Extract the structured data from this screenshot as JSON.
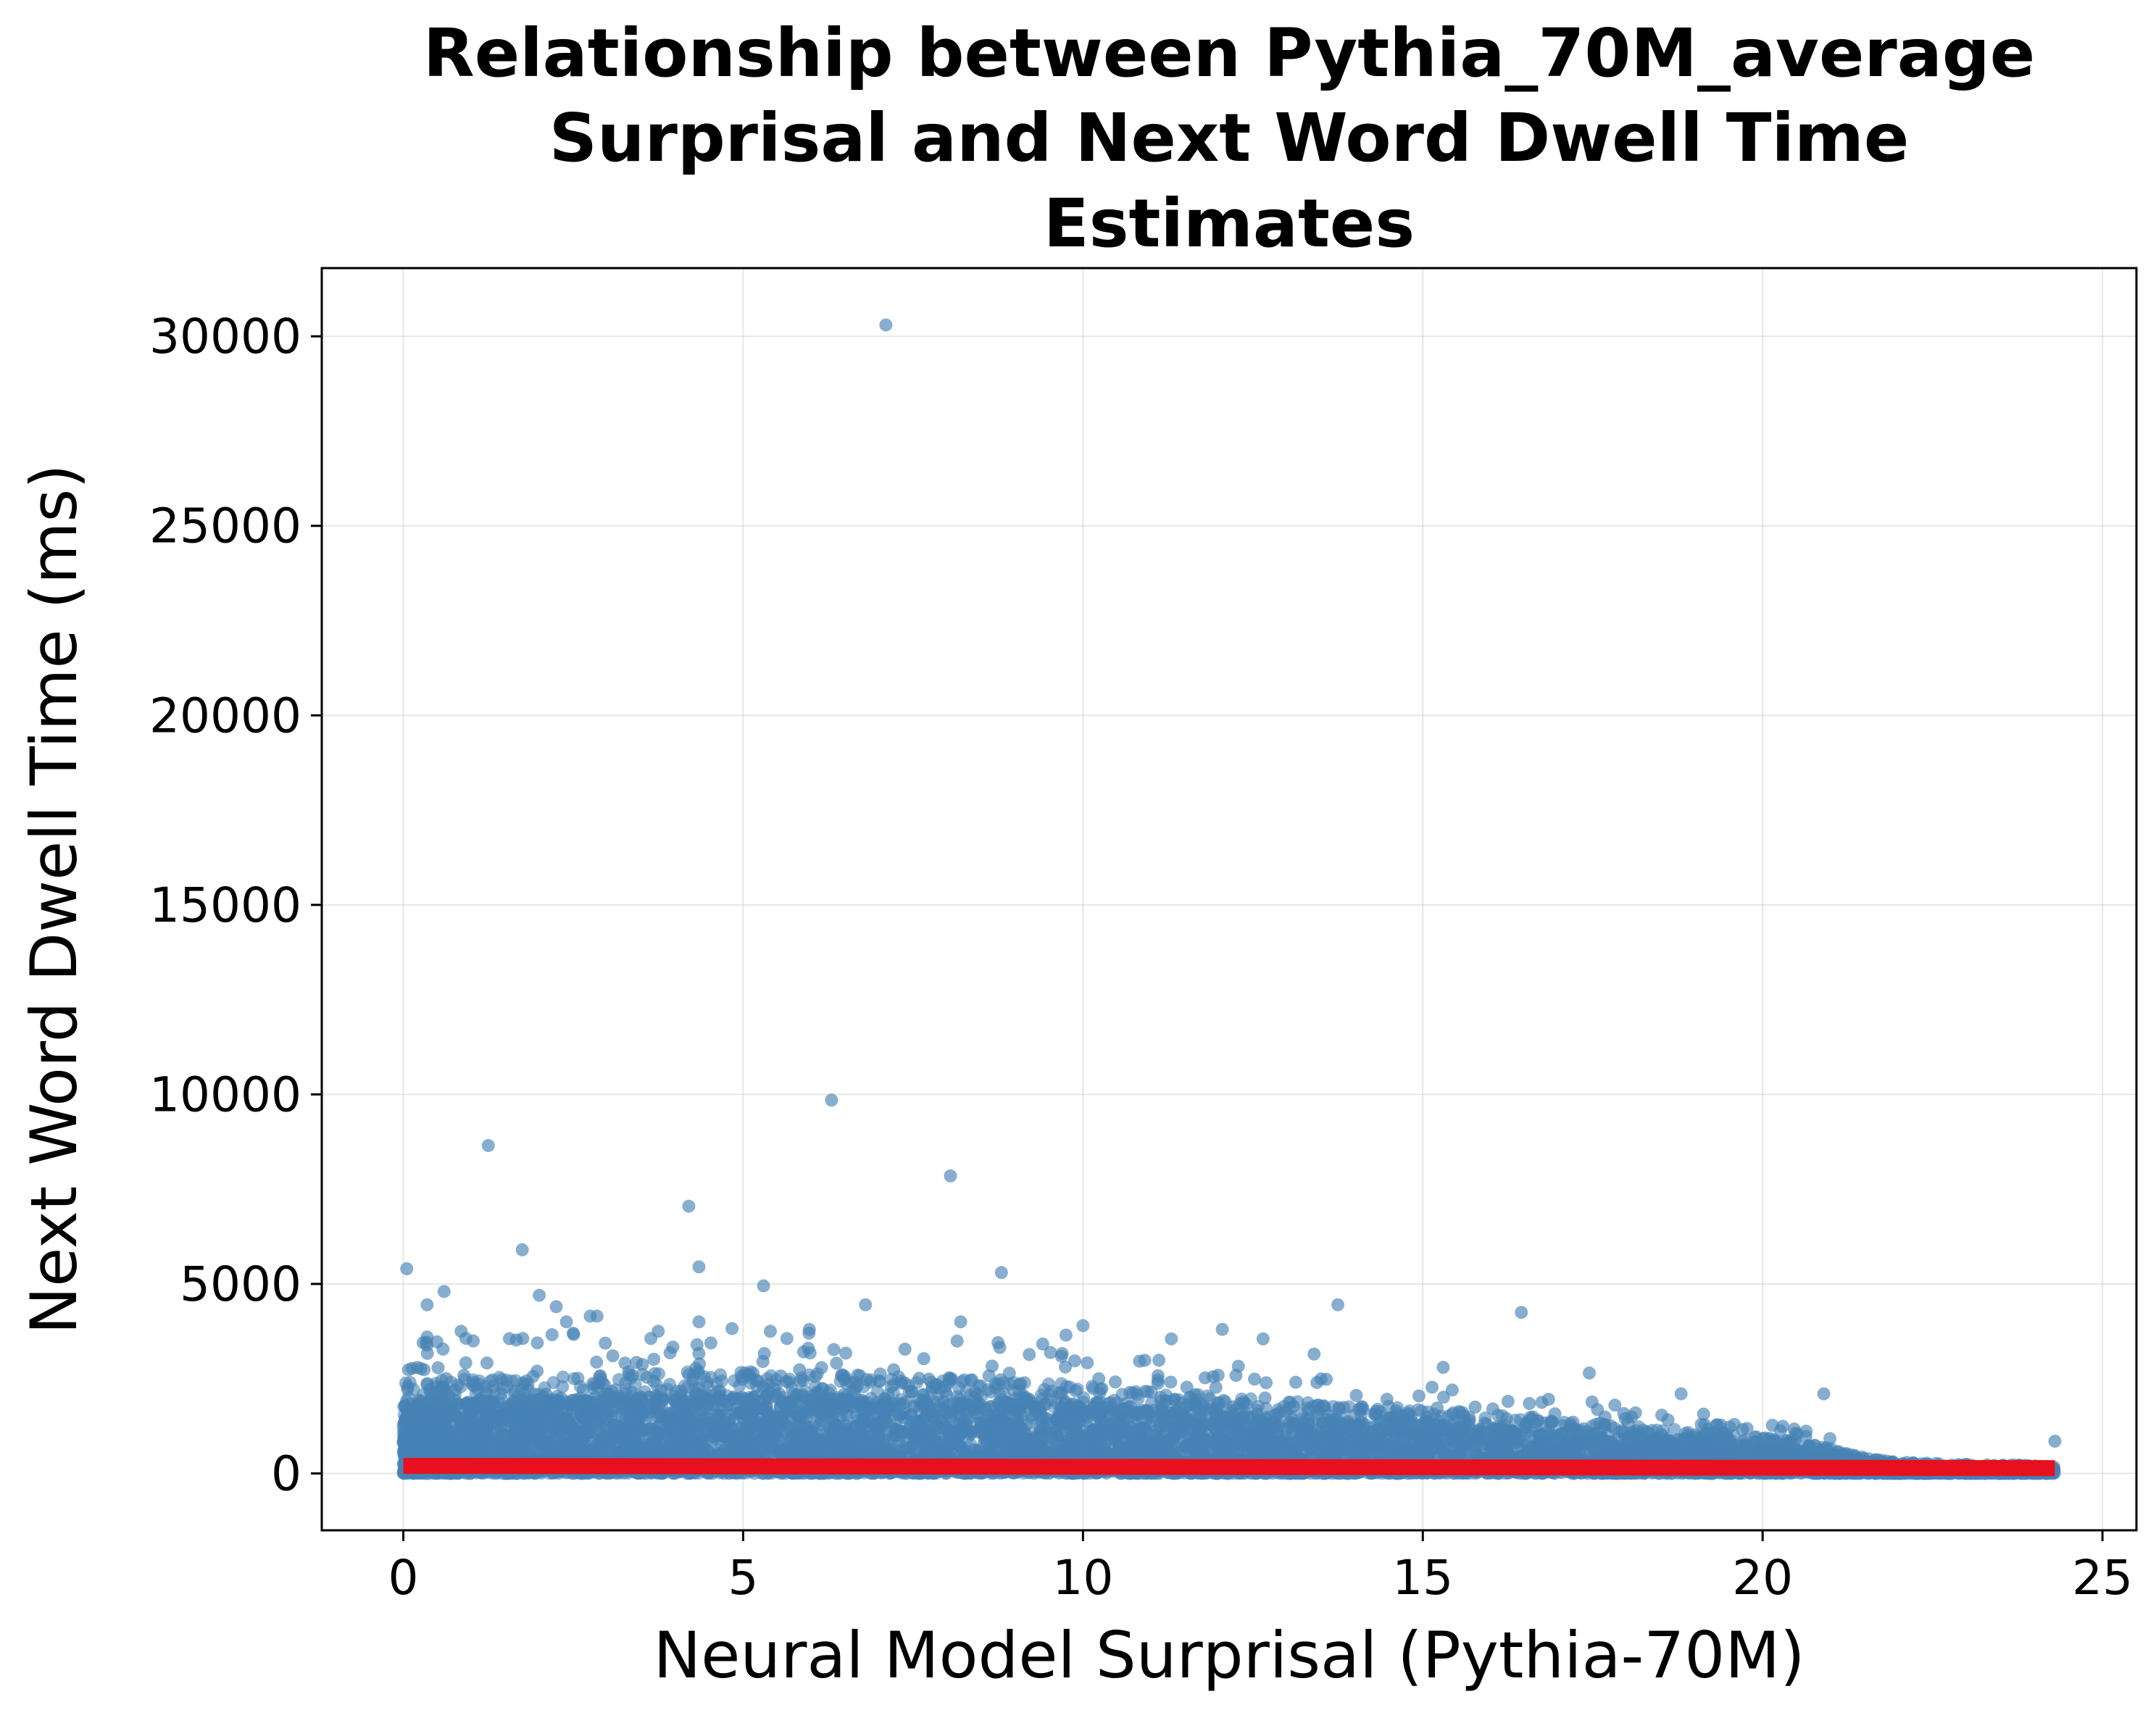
{
  "chart_data": {
    "type": "scatter",
    "title_lines": [
      "Relationship between Pythia_70M_average",
      "Surprisal and Next Word Dwell Time",
      "Estimates"
    ],
    "xlabel": "Neural Model Surprisal (Pythia-70M)",
    "ylabel": "Next Word Dwell Time (ms)",
    "xlim": [
      -1.2,
      25.5
    ],
    "ylim": [
      -1500,
      31800
    ],
    "x_ticks": [
      0,
      5,
      10,
      15,
      20,
      25
    ],
    "y_ticks": [
      0,
      5000,
      10000,
      15000,
      20000,
      25000,
      30000
    ],
    "grid": true,
    "legend": "none",
    "series": [
      {
        "kind": "points",
        "color": "#4682b4",
        "density_envelope": [
          [
            0,
            2000
          ],
          [
            1,
            2100
          ],
          [
            2,
            2150
          ],
          [
            3,
            2200
          ],
          [
            4,
            2250
          ],
          [
            5,
            2250
          ],
          [
            6,
            2200
          ],
          [
            7,
            2150
          ],
          [
            8,
            2100
          ],
          [
            9,
            2050
          ],
          [
            10,
            1950
          ],
          [
            11,
            1800
          ],
          [
            12,
            1700
          ],
          [
            13,
            1600
          ],
          [
            14,
            1500
          ],
          [
            15,
            1450
          ],
          [
            16,
            1300
          ],
          [
            17,
            1150
          ],
          [
            18,
            1050
          ],
          [
            19,
            950
          ],
          [
            20,
            800
          ],
          [
            20.5,
            700
          ],
          [
            21,
            550
          ],
          [
            21.5,
            350
          ],
          [
            22,
            250
          ],
          [
            23,
            200
          ],
          [
            24,
            180
          ],
          [
            24.3,
            150
          ]
        ],
        "outliers": [
          [
            7.1,
            30300
          ],
          [
            6.3,
            9850
          ],
          [
            1.25,
            8650
          ],
          [
            8.05,
            7850
          ],
          [
            4.2,
            7050
          ],
          [
            1.75,
            5900
          ],
          [
            4.35,
            5450
          ],
          [
            0.05,
            5400
          ],
          [
            8.8,
            5300
          ],
          [
            5.3,
            4950
          ],
          [
            0.6,
            4800
          ],
          [
            2.0,
            4700
          ],
          [
            6.8,
            4450
          ],
          [
            13.75,
            4450
          ],
          [
            0.35,
            4450
          ],
          [
            2.25,
            4400
          ],
          [
            16.45,
            4250
          ],
          [
            2.75,
            4150
          ],
          [
            2.85,
            4150
          ],
          [
            8.2,
            4000
          ],
          [
            2.4,
            4000
          ],
          [
            4.35,
            4000
          ],
          [
            5.4,
            3750
          ],
          [
            10.0,
            3900
          ],
          [
            12.05,
            3800
          ],
          [
            0.85,
            3750
          ],
          [
            3.75,
            3750
          ],
          [
            0.35,
            3600
          ],
          [
            9.75,
            3650
          ],
          [
            11.3,
            3550
          ],
          [
            2.5,
            3700
          ],
          [
            12.65,
            3550
          ],
          [
            17.45,
            2650
          ],
          [
            20.9,
            2100
          ],
          [
            15.3,
            2800
          ],
          [
            18.8,
            2100
          ],
          [
            24.3,
            850
          ],
          [
            13.4,
            3150
          ],
          [
            8.75,
            3450
          ]
        ]
      },
      {
        "kind": "trend",
        "color": "#e8101e",
        "points": [
          [
            0,
            200
          ],
          [
            24.3,
            140
          ]
        ]
      }
    ]
  }
}
